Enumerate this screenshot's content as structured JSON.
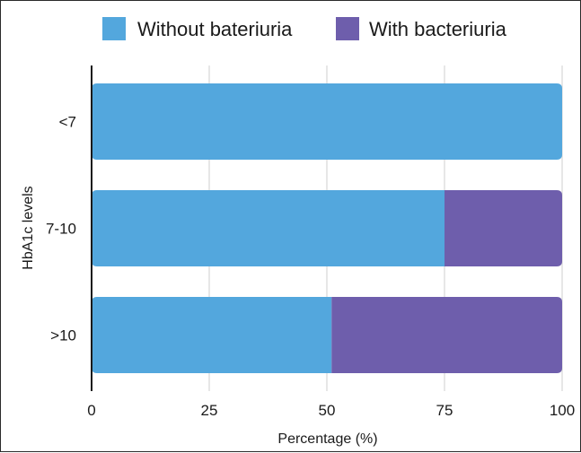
{
  "chart_data": {
    "type": "bar",
    "orientation": "horizontal",
    "stacked": true,
    "categories": [
      "<7",
      "7-10",
      ">10"
    ],
    "series": [
      {
        "name": "Without bateriuria",
        "color": "#53A7DD",
        "values": [
          100,
          75,
          51
        ]
      },
      {
        "name": "With bacteriuria",
        "color": "#6E5EAC",
        "values": [
          0,
          25,
          49
        ]
      }
    ],
    "xlabel": "Percentage (%)",
    "ylabel": "HbA1c levels",
    "xlim": [
      0,
      100
    ],
    "xticks": [
      "0",
      "25",
      "50",
      "75",
      "100"
    ],
    "grid": "vertical",
    "legend": "top"
  }
}
